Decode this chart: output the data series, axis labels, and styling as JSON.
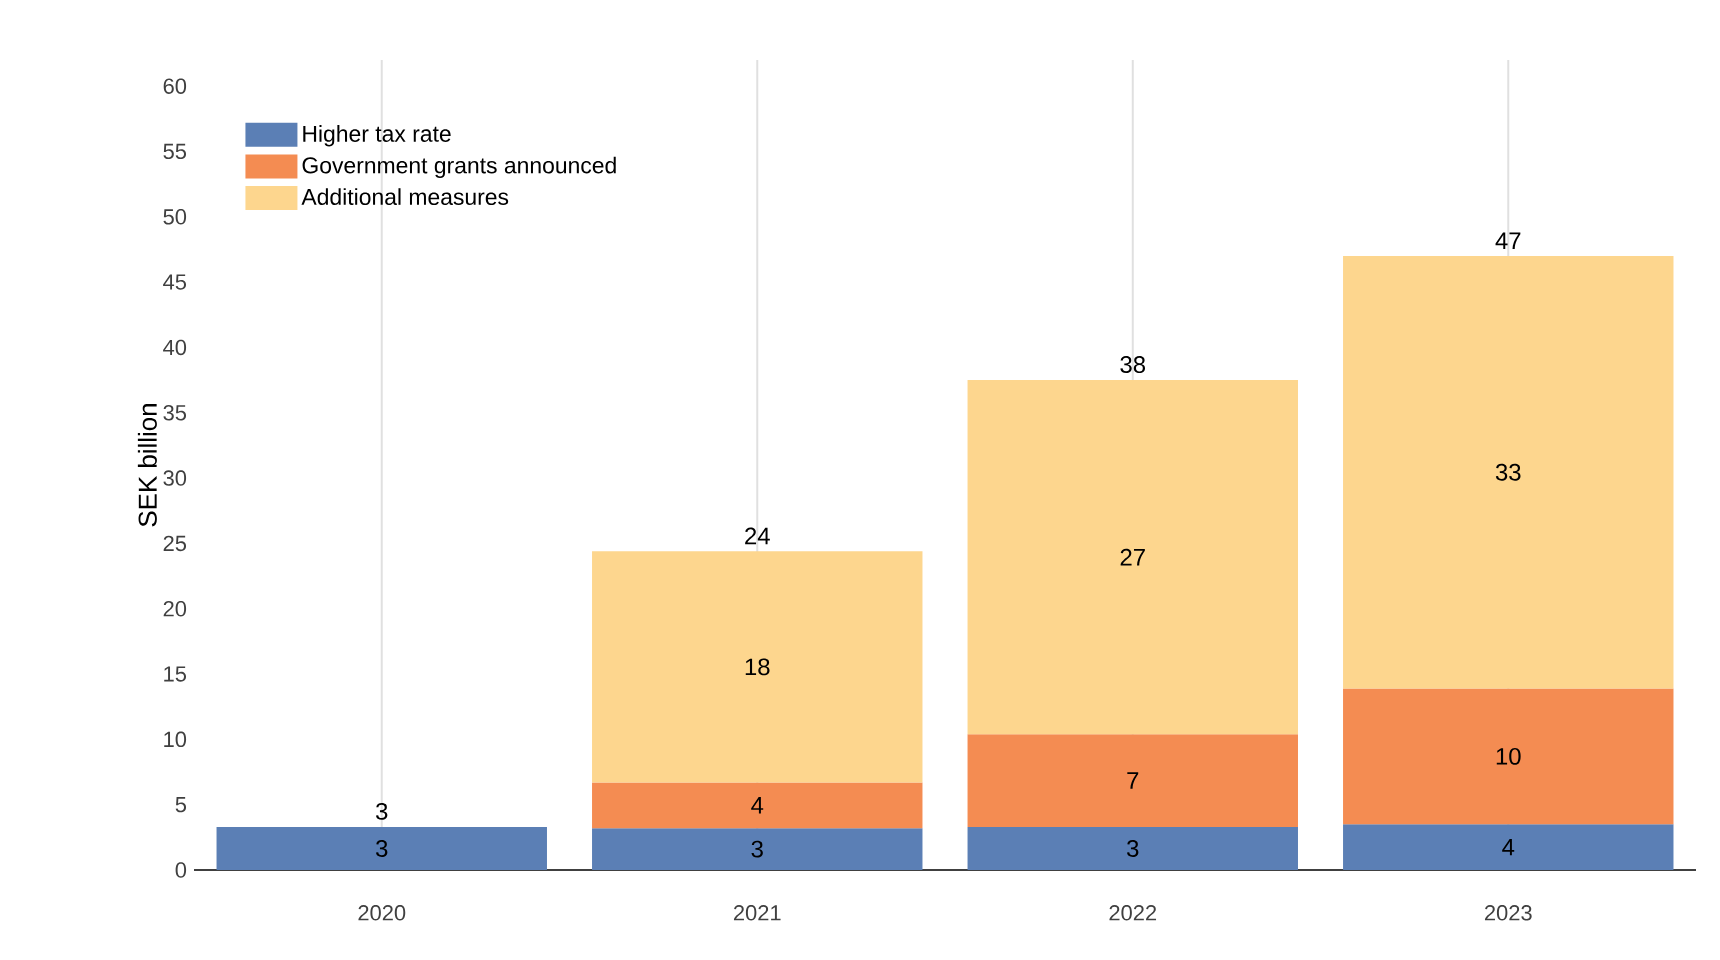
{
  "chart_data": {
    "type": "bar",
    "stacked": true,
    "ylabel": "SEK billion",
    "categories": [
      "2020",
      "2021",
      "2022",
      "2023"
    ],
    "series": [
      {
        "name": "Higher tax rate",
        "color": "#5b7fb5",
        "values": [
          3.3,
          3.2,
          3.3,
          3.5
        ],
        "value_labels": [
          "3",
          "3",
          "3",
          "4"
        ]
      },
      {
        "name": "Government grants announced",
        "color": "#f48c52",
        "values": [
          null,
          3.5,
          7.1,
          10.4
        ],
        "value_labels": [
          null,
          "4",
          "7",
          "10"
        ]
      },
      {
        "name": "Additional measures",
        "color": "#fdd68e",
        "values": [
          null,
          17.7,
          27.1,
          33.1
        ],
        "value_labels": [
          null,
          "18",
          "27",
          "33"
        ]
      }
    ],
    "totals": [
      "3",
      "24",
      "38",
      "47"
    ],
    "ylim": [
      0,
      62
    ],
    "yticks": [
      0,
      5,
      10,
      15,
      20,
      25,
      30,
      35,
      40,
      45,
      50,
      55,
      60
    ],
    "grid": "x",
    "legend": "top left"
  }
}
